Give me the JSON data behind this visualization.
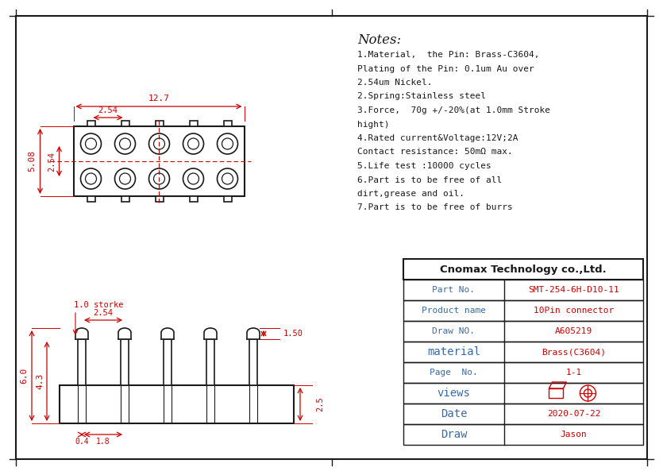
{
  "bg_color": "#ffffff",
  "red": "#cc0000",
  "dark": "#1a1a1a",
  "blue_label": "#3a6aaa",
  "notes_title": "Notes:",
  "notes_lines": [
    "1.Material,  the Pin: Brass-C3604,",
    "Plating of the Pin: 0.1um Au over",
    "2.54um Nickel.",
    "2.Spring:Stainless steel",
    "3.Force,  70g +/-20%(at 1.0mm Stroke",
    "hight)",
    "4.Rated current&Voltage:12V;2A",
    "Contact resistance: 50mΩ max.",
    "5.Life test :10000 cycles",
    "6.Part is to be free of all",
    "dirt,grease and oil.",
    "7.Part is to be free of burrs"
  ],
  "table_title": "Cnomax Technology co.,Ltd.",
  "table_rows": [
    [
      "Part No.",
      "SMT-254-6H-D10-11"
    ],
    [
      "Product name",
      "10Pin connector"
    ],
    [
      "Draw NO.",
      "A605219"
    ],
    [
      "material",
      "Brass(C3604)"
    ],
    [
      "Page  No.",
      "1-1"
    ],
    [
      "views",
      "views_special"
    ],
    [
      "Date",
      "2020-07-22"
    ],
    [
      "Draw",
      "Jason"
    ]
  ],
  "fig_w": 8.35,
  "fig_h": 5.98,
  "dpi": 100
}
